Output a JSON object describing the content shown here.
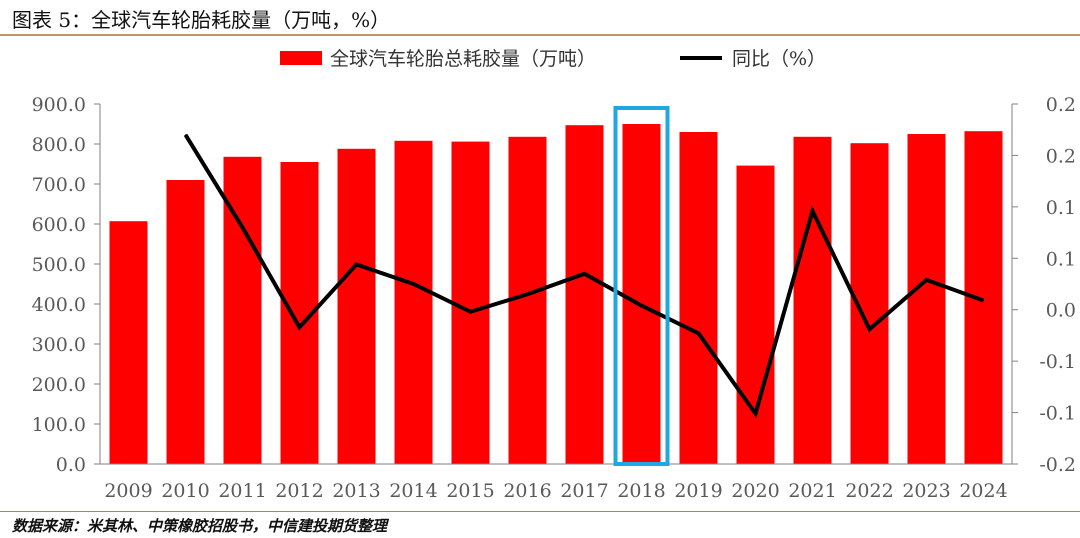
{
  "title": "图表 5：全球汽车轮胎耗胶量（万吨，%）",
  "source": "数据来源：米其林、中策橡胶招股书，中信建投期货整理",
  "colors": {
    "bar": "#ff0000",
    "line": "#000000",
    "highlight": "#1ea7e1",
    "axis": "#808080"
  },
  "chart_data": {
    "type": "bar",
    "title": "图表 5：全球汽车轮胎耗胶量（万吨，%）",
    "categories": [
      "2009",
      "2010",
      "2011",
      "2012",
      "2013",
      "2014",
      "2015",
      "2016",
      "2017",
      "2018",
      "2019",
      "2020",
      "2021",
      "2022",
      "2023",
      "2024"
    ],
    "series": [
      {
        "name": "全球汽车轮胎总耗胶量（万吨）",
        "type": "bar",
        "axis": "left",
        "values": [
          607,
          710,
          768,
          755,
          788,
          808,
          806,
          818,
          847,
          850,
          830,
          746,
          818,
          802,
          825,
          832
        ]
      },
      {
        "name": "同比（%）",
        "type": "line",
        "axis": "right",
        "values": [
          null,
          0.17,
          0.08,
          -0.017,
          0.044,
          0.025,
          -0.002,
          0.015,
          0.035,
          0.004,
          -0.023,
          -0.101,
          0.096,
          -0.019,
          0.029,
          0.009
        ]
      }
    ],
    "left_axis": {
      "ylim": [
        0,
        900
      ],
      "ticks": [
        "0.0",
        "100.0",
        "200.0",
        "300.0",
        "400.0",
        "500.0",
        "600.0",
        "700.0",
        "800.0",
        "900.0"
      ]
    },
    "right_axis": {
      "ylim": [
        -0.15,
        0.2
      ],
      "tick_values": [
        0.2,
        0.15,
        0.1,
        0.05,
        0.0,
        -0.05,
        -0.1,
        -0.15
      ],
      "ticks": [
        "0.2",
        "0.2",
        "0.1",
        "0.1",
        "0.0",
        "-0.1",
        "-0.1",
        "-0.2"
      ]
    },
    "highlight_category": "2018",
    "legend_position": "top-center",
    "grid": false
  }
}
